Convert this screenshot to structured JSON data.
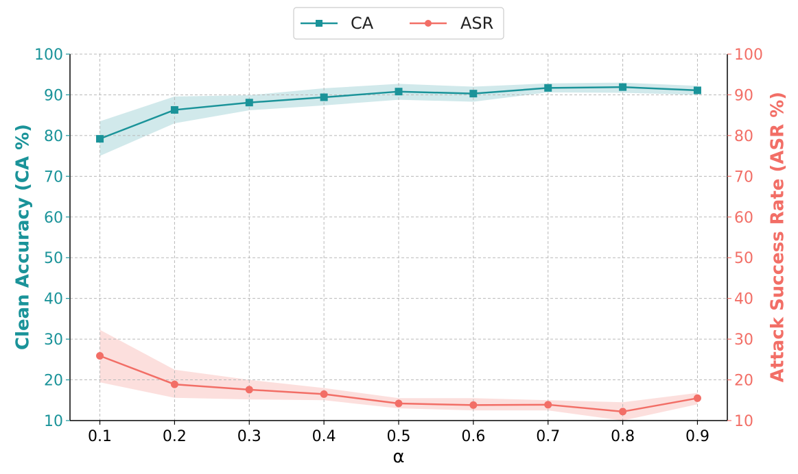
{
  "chart_data": {
    "type": "line",
    "xlabel": "α",
    "ylabel_left": "Clean Accuracy (CA %)",
    "ylabel_right": "Attack Success Rate (ASR %)",
    "x": [
      0.1,
      0.2,
      0.3,
      0.4,
      0.5,
      0.6,
      0.7,
      0.8,
      0.9
    ],
    "x_tick_labels": [
      "0.1",
      "0.2",
      "0.3",
      "0.4",
      "0.5",
      "0.6",
      "0.7",
      "0.8",
      "0.9"
    ],
    "xlim": [
      0.06,
      0.94
    ],
    "ylim": [
      10,
      100
    ],
    "y_ticks": [
      "10",
      "20",
      "30",
      "40",
      "50",
      "60",
      "70",
      "80",
      "90",
      "100"
    ],
    "grid": true,
    "legend_position": "top-center",
    "series": [
      {
        "name": "CA",
        "axis": "left",
        "color": "#1a9399",
        "marker": "square",
        "values": [
          79.2,
          86.3,
          88.1,
          89.4,
          90.8,
          90.3,
          91.7,
          91.9,
          91.1
        ],
        "upper": [
          83.5,
          89.6,
          89.9,
          91.6,
          92.7,
          92.0,
          92.8,
          93.0,
          92.2
        ],
        "lower": [
          75.0,
          83.0,
          86.2,
          87.4,
          88.8,
          88.3,
          90.6,
          90.5,
          90.0
        ]
      },
      {
        "name": "ASR",
        "axis": "right",
        "color": "#f26e66",
        "marker": "circle",
        "values": [
          25.9,
          18.9,
          17.6,
          16.5,
          14.2,
          13.8,
          13.9,
          12.2,
          15.5
        ],
        "upper": [
          32.3,
          22.5,
          20.0,
          18.0,
          15.5,
          15.5,
          15.0,
          14.5,
          16.8
        ],
        "lower": [
          19.4,
          15.6,
          15.2,
          15.0,
          13.0,
          12.5,
          12.5,
          10.0,
          14.0
        ]
      }
    ]
  }
}
